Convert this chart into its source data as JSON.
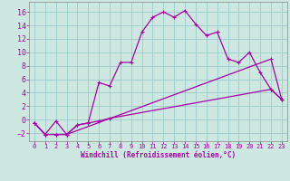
{
  "xlabel": "Windchill (Refroidissement éolien,°C)",
  "background_color": "#cce8e0",
  "line_color": "#aa00aa",
  "grid_color": "#99cccc",
  "xlim": [
    -0.5,
    23.5
  ],
  "ylim": [
    -3.2,
    17.5
  ],
  "xticks": [
    0,
    1,
    2,
    3,
    4,
    5,
    6,
    7,
    8,
    9,
    10,
    11,
    12,
    13,
    14,
    15,
    16,
    17,
    18,
    19,
    20,
    21,
    22,
    23
  ],
  "yticks": [
    -2,
    0,
    2,
    4,
    6,
    8,
    10,
    12,
    14,
    16
  ],
  "line1_x": [
    0,
    1,
    2,
    3,
    4,
    5,
    6,
    7,
    8,
    9,
    10,
    11,
    12,
    13,
    14,
    15,
    16,
    17,
    18,
    19,
    20,
    21,
    22,
    23
  ],
  "line1_y": [
    -0.5,
    -2.2,
    -0.2,
    -2.2,
    -0.8,
    -0.5,
    5.5,
    5.0,
    8.5,
    8.5,
    13.0,
    15.2,
    16.0,
    15.2,
    16.2,
    14.2,
    12.5,
    13.0,
    9.0,
    8.5,
    10.0,
    7.0,
    4.5,
    3.0
  ],
  "line2_x": [
    0,
    1,
    2,
    3,
    4,
    5,
    6,
    7,
    22,
    23
  ],
  "line2_y": [
    -0.5,
    -2.2,
    -2.2,
    -2.2,
    -0.8,
    -0.5,
    -0.2,
    0.2,
    4.5,
    3.0
  ],
  "line3_x": [
    0,
    1,
    2,
    3,
    22,
    23
  ],
  "line3_y": [
    -0.5,
    -2.2,
    -2.2,
    -2.2,
    9.0,
    3.0
  ],
  "xlabel_fontsize": 5.5,
  "tick_fontsize_x": 5.0,
  "tick_fontsize_y": 6.0,
  "linewidth": 0.9,
  "markersize": 2.0
}
